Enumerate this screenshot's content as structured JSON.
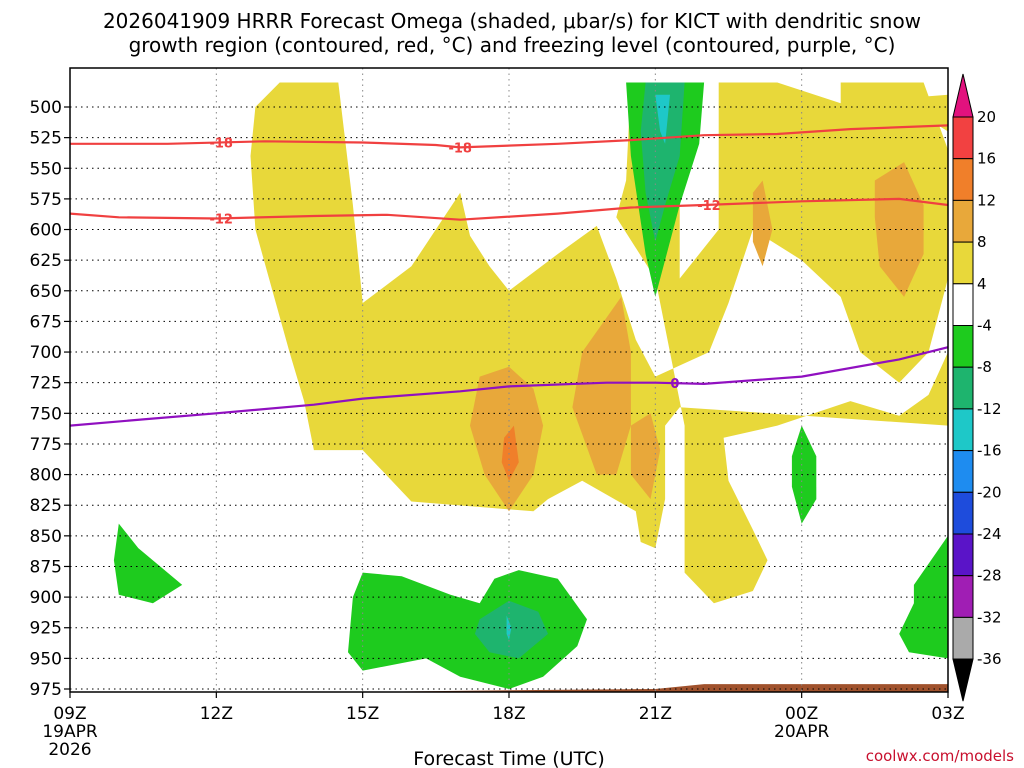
{
  "chart_data": {
    "type": "time-height contour",
    "title_line1": "2026041909 HRRR Forecast Omega (shaded, μbar/s) for KICT with dendritic snow",
    "title_line2": "growth region (contoured, red, °C) and freezing level (contoured, purple, °C)",
    "xlabel": "Forecast Time (UTC)",
    "credit": "coolwx.com/models",
    "x_range_hours": [
      0,
      18
    ],
    "y_range_hpa": [
      480,
      985
    ],
    "y_ticks": [
      500,
      525,
      550,
      575,
      600,
      625,
      650,
      675,
      700,
      725,
      750,
      775,
      800,
      825,
      850,
      875,
      900,
      925,
      950,
      975
    ],
    "y_tick_labels": [
      "500",
      "525",
      "550",
      "575",
      "600",
      "625",
      "650",
      "675",
      "700",
      "725",
      "750",
      "775",
      "800",
      "825",
      "850",
      "875",
      "900",
      "925",
      "950",
      "975"
    ],
    "x_ticks": [
      {
        "hour": 0,
        "label": "09Z",
        "sub1": "19APR",
        "sub2": "2026"
      },
      {
        "hour": 3,
        "label": "12Z",
        "sub1": "",
        "sub2": ""
      },
      {
        "hour": 6,
        "label": "15Z",
        "sub1": "",
        "sub2": ""
      },
      {
        "hour": 9,
        "label": "18Z",
        "sub1": "",
        "sub2": ""
      },
      {
        "hour": 12,
        "label": "21Z",
        "sub1": "",
        "sub2": ""
      },
      {
        "hour": 15,
        "label": "00Z",
        "sub1": "20APR",
        "sub2": ""
      },
      {
        "hour": 18,
        "label": "03Z",
        "sub1": "",
        "sub2": ""
      }
    ],
    "colorbar": {
      "labels": [
        "20",
        "16",
        "12",
        "8",
        "4",
        "-4",
        "-8",
        "-12",
        "-16",
        "-20",
        "-24",
        "-28",
        "-32",
        "-36"
      ],
      "colors": [
        "#e2127e",
        "#f24141",
        "#f07f2a",
        "#e8a83a",
        "#e8d83a",
        "#ffffff",
        "#1ecb1e",
        "#1eb46e",
        "#1ec8c8",
        "#1e8cf0",
        "#1e4cdc",
        "#5a14c8",
        "#a01eb4",
        "#aaaaaa",
        "#000000"
      ]
    },
    "contours": [
      {
        "name": "dgz-minus-18",
        "label": "-18",
        "color": "#f04040",
        "points": [
          [
            0,
            530
          ],
          [
            2,
            530
          ],
          [
            4,
            528
          ],
          [
            6,
            529
          ],
          [
            7.5,
            531
          ],
          [
            8,
            533
          ],
          [
            10,
            530
          ],
          [
            11.5,
            527
          ],
          [
            13,
            523
          ],
          [
            14.5,
            522
          ],
          [
            16,
            518
          ],
          [
            18,
            515
          ]
        ],
        "label_hours": [
          3.1,
          8.0
        ]
      },
      {
        "name": "dgz-minus-12",
        "label": "-12",
        "color": "#f04040",
        "points": [
          [
            0,
            587
          ],
          [
            1,
            590
          ],
          [
            3,
            591
          ],
          [
            5,
            589
          ],
          [
            6.5,
            588
          ],
          [
            8,
            592
          ],
          [
            10,
            587
          ],
          [
            11.5,
            582
          ],
          [
            13,
            580
          ],
          [
            15,
            577
          ],
          [
            17,
            575
          ],
          [
            18,
            580
          ]
        ],
        "label_hours": [
          3.1,
          13.1
        ]
      },
      {
        "name": "freezing-level",
        "label": "0",
        "color": "#9010c0",
        "points": [
          [
            0,
            760
          ],
          [
            1.5,
            755
          ],
          [
            3,
            750
          ],
          [
            5,
            743
          ],
          [
            6,
            738
          ],
          [
            8,
            732
          ],
          [
            9,
            728
          ],
          [
            11,
            725
          ],
          [
            12,
            725
          ],
          [
            13,
            726
          ],
          [
            15,
            720
          ],
          [
            17,
            706
          ],
          [
            18,
            696
          ]
        ],
        "label_hours": [
          12.4
        ]
      }
    ],
    "shaded_regions": [
      {
        "name": "upward-yellow-main",
        "value_range": "4 to 8",
        "color": "#e8d83a",
        "polygon": [
          [
            4.3,
            480
          ],
          [
            5.5,
            480
          ],
          [
            5.8,
            580
          ],
          [
            6,
            660
          ],
          [
            7,
            630
          ],
          [
            8,
            570
          ],
          [
            8.2,
            605
          ],
          [
            8.6,
            630
          ],
          [
            9,
            650
          ],
          [
            10,
            620
          ],
          [
            10.8,
            597
          ],
          [
            11.2,
            640
          ],
          [
            11.6,
            690
          ],
          [
            12,
            720
          ],
          [
            13.1,
            700
          ],
          [
            13.5,
            660
          ],
          [
            14,
            600
          ],
          [
            15,
            625
          ],
          [
            15.8,
            655
          ],
          [
            16.2,
            700
          ],
          [
            17,
            725
          ],
          [
            17.6,
            700
          ],
          [
            18,
            640
          ],
          [
            18,
            535
          ],
          [
            17.5,
            480
          ],
          [
            15.8,
            480
          ],
          [
            15.8,
            497
          ],
          [
            17.2,
            500
          ],
          [
            18,
            520
          ],
          [
            18,
            490
          ],
          [
            15.8,
            497
          ],
          [
            14.5,
            480
          ],
          [
            13.3,
            480
          ],
          [
            13.3,
            555
          ],
          [
            13.3,
            600
          ],
          [
            12.5,
            640
          ],
          [
            12.5,
            480
          ],
          [
            11.5,
            480
          ],
          [
            11.4,
            560
          ],
          [
            11.2,
            590
          ],
          [
            12,
            640
          ],
          [
            12.6,
            760
          ],
          [
            12.6,
            820
          ],
          [
            12.6,
            880
          ],
          [
            13.2,
            905
          ],
          [
            14,
            895
          ],
          [
            14.3,
            870
          ],
          [
            14,
            845
          ],
          [
            13.5,
            805
          ],
          [
            13.4,
            770
          ],
          [
            14.5,
            760
          ],
          [
            16,
            740
          ],
          [
            17,
            752
          ],
          [
            17.6,
            735
          ],
          [
            18,
            700
          ],
          [
            18,
            760
          ],
          [
            12.5,
            745
          ],
          [
            12.2,
            760
          ],
          [
            12.2,
            820
          ],
          [
            12,
            860
          ],
          [
            11.7,
            855
          ],
          [
            11.6,
            830
          ],
          [
            10.5,
            805
          ],
          [
            9.8,
            820
          ],
          [
            9.5,
            830
          ],
          [
            7,
            822
          ],
          [
            6,
            780
          ],
          [
            5,
            780
          ],
          [
            4.8,
            740
          ],
          [
            4.5,
            700
          ],
          [
            3.8,
            600
          ],
          [
            3.7,
            540
          ],
          [
            3.8,
            500
          ],
          [
            4.3,
            480
          ]
        ]
      },
      {
        "name": "upward-orange-1",
        "value_range": "8 to 12",
        "color": "#e8a83a",
        "polygon": [
          [
            8.4,
            720
          ],
          [
            9,
            712
          ],
          [
            9.5,
            730
          ],
          [
            9.7,
            760
          ],
          [
            9.5,
            800
          ],
          [
            9,
            830
          ],
          [
            8.5,
            800
          ],
          [
            8.2,
            760
          ]
        ]
      },
      {
        "name": "upward-orange-2",
        "value_range": "8 to 12",
        "color": "#e8a83a",
        "polygon": [
          [
            10.5,
            700
          ],
          [
            11.3,
            655
          ],
          [
            11.5,
            700
          ],
          [
            11.5,
            760
          ],
          [
            11.2,
            800
          ],
          [
            10.8,
            800
          ],
          [
            10.3,
            745
          ],
          [
            10.5,
            700
          ]
        ]
      },
      {
        "name": "upward-orange-3",
        "value_range": "8 to 12",
        "color": "#e8a83a",
        "polygon": [
          [
            11.5,
            760
          ],
          [
            11.9,
            750
          ],
          [
            12.1,
            780
          ],
          [
            11.9,
            820
          ],
          [
            11.5,
            800
          ]
        ]
      },
      {
        "name": "upward-orange-4",
        "value_range": "8 to 12",
        "color": "#e8a83a",
        "polygon": [
          [
            14.0,
            570
          ],
          [
            14.2,
            560
          ],
          [
            14.4,
            600
          ],
          [
            14.2,
            630
          ],
          [
            14.0,
            610
          ]
        ]
      },
      {
        "name": "upward-orange-5",
        "value_range": "8 to 12",
        "color": "#e8a83a",
        "polygon": [
          [
            16.5,
            560
          ],
          [
            17.1,
            545
          ],
          [
            17.5,
            580
          ],
          [
            17.5,
            620
          ],
          [
            17.1,
            655
          ],
          [
            16.6,
            630
          ],
          [
            16.5,
            590
          ]
        ]
      },
      {
        "name": "upward-orange-core",
        "value_range": "12 to 16",
        "color": "#f07f2a",
        "polygon": [
          [
            8.9,
            770
          ],
          [
            9.1,
            760
          ],
          [
            9.2,
            790
          ],
          [
            9.0,
            805
          ],
          [
            8.85,
            790
          ]
        ]
      },
      {
        "name": "downward-green-top",
        "value_range": "-4 to -8",
        "color": "#1ecb1e",
        "polygon": [
          [
            11.4,
            480
          ],
          [
            13.0,
            480
          ],
          [
            12.9,
            530
          ],
          [
            12.5,
            580
          ],
          [
            12.1,
            640
          ],
          [
            12.0,
            655
          ],
          [
            11.8,
            620
          ],
          [
            11.5,
            540
          ],
          [
            11.4,
            480
          ]
        ]
      },
      {
        "name": "downward-teal-top",
        "value_range": "-8 to -12",
        "color": "#1eb46e",
        "polygon": [
          [
            11.8,
            480
          ],
          [
            12.6,
            480
          ],
          [
            12.5,
            540
          ],
          [
            12.2,
            580
          ],
          [
            12.0,
            610
          ],
          [
            11.8,
            570
          ],
          [
            11.7,
            520
          ]
        ]
      },
      {
        "name": "downward-cyan-top",
        "value_range": "-12 to -16",
        "color": "#1ec8c8",
        "polygon": [
          [
            12.0,
            490
          ],
          [
            12.3,
            490
          ],
          [
            12.2,
            530
          ],
          [
            12.1,
            520
          ]
        ]
      },
      {
        "name": "downward-green-left",
        "value_range": "-4 to -8",
        "color": "#1ecb1e",
        "polygon": [
          [
            1.0,
            840
          ],
          [
            1.4,
            860
          ],
          [
            2.3,
            890
          ],
          [
            1.7,
            905
          ],
          [
            1.0,
            898
          ],
          [
            0.9,
            870
          ]
        ]
      },
      {
        "name": "downward-green-low",
        "value_range": "-4 to -8",
        "color": "#1ecb1e",
        "polygon": [
          [
            6.0,
            880
          ],
          [
            6.8,
            883
          ],
          [
            7.8,
            898
          ],
          [
            8.4,
            905
          ],
          [
            8.7,
            885
          ],
          [
            9.2,
            878
          ],
          [
            10.0,
            885
          ],
          [
            10.6,
            918
          ],
          [
            10.4,
            940
          ],
          [
            9.7,
            965
          ],
          [
            9.0,
            975
          ],
          [
            8.0,
            965
          ],
          [
            7.3,
            950
          ],
          [
            6.0,
            960
          ],
          [
            5.7,
            945
          ],
          [
            5.8,
            900
          ],
          [
            6.0,
            880
          ]
        ]
      },
      {
        "name": "downward-teal-low",
        "value_range": "-8 to -12",
        "color": "#1eb46e",
        "polygon": [
          [
            8.4,
            918
          ],
          [
            9.0,
            903
          ],
          [
            9.6,
            912
          ],
          [
            9.8,
            930
          ],
          [
            9.2,
            950
          ],
          [
            8.6,
            945
          ],
          [
            8.3,
            930
          ]
        ]
      },
      {
        "name": "downward-cyan-low",
        "value_range": "-12 to -16",
        "color": "#1ec8c8",
        "polygon": [
          [
            8.95,
            915
          ],
          [
            9.05,
            925
          ],
          [
            9.0,
            935
          ],
          [
            8.95,
            930
          ]
        ]
      },
      {
        "name": "downward-green-small",
        "value_range": "-4 to -8",
        "color": "#1ecb1e",
        "polygon": [
          [
            15.0,
            760
          ],
          [
            15.3,
            785
          ],
          [
            15.3,
            820
          ],
          [
            15.0,
            840
          ],
          [
            14.8,
            810
          ],
          [
            14.8,
            785
          ]
        ]
      },
      {
        "name": "downward-green-right",
        "value_range": "-4 to -8",
        "color": "#1ecb1e",
        "polygon": [
          [
            17.3,
            890
          ],
          [
            18,
            850
          ],
          [
            18,
            950
          ],
          [
            17.2,
            945
          ],
          [
            17.0,
            930
          ],
          [
            17.3,
            905
          ]
        ]
      }
    ],
    "terrain": {
      "name": "ground",
      "color": "#a0522d",
      "polygon": [
        [
          0,
          978
        ],
        [
          6,
          978
        ],
        [
          9,
          976
        ],
        [
          12,
          975
        ],
        [
          13,
          971
        ],
        [
          15,
          971
        ],
        [
          18,
          971
        ],
        [
          18,
          985
        ],
        [
          0,
          985
        ]
      ]
    }
  }
}
